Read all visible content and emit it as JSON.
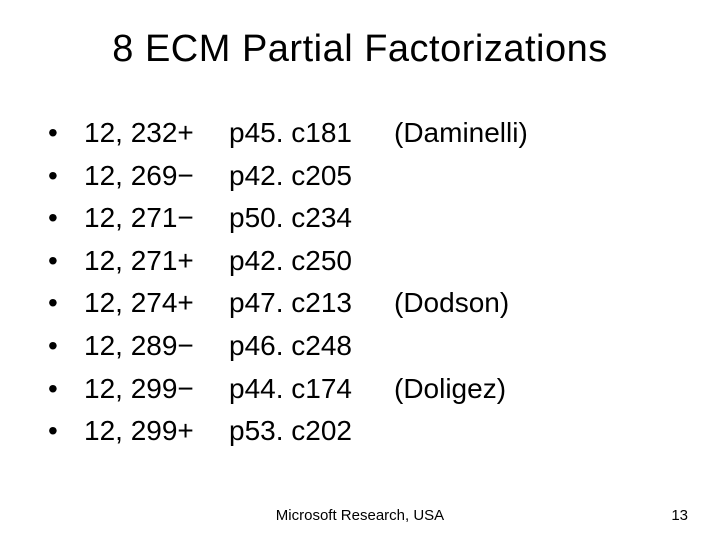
{
  "title": "8 ECM Partial Factorizations",
  "rows": [
    {
      "col1": "12, 232+",
      "col2": "p45. c181",
      "col3": "(Daminelli)"
    },
    {
      "col1": "12, 269−",
      "col2": "p42. c205",
      "col3": ""
    },
    {
      "col1": "12, 271−",
      "col2": "p50. c234",
      "col3": ""
    },
    {
      "col1": "12, 271+",
      "col2": "p42. c250",
      "col3": ""
    },
    {
      "col1": "12, 274+",
      "col2": "p47. c213",
      "col3": " (Dodson)"
    },
    {
      "col1": "12, 289−",
      "col2": "p46. c248",
      "col3": ""
    },
    {
      "col1": "12, 299−",
      "col2": "p44. c174",
      "col3": " (Doligez)"
    },
    {
      "col1": "12, 299+",
      "col2": "p53. c202",
      "col3": ""
    }
  ],
  "footer": "Microsoft Research, USA",
  "page": "13",
  "bullet": "•"
}
